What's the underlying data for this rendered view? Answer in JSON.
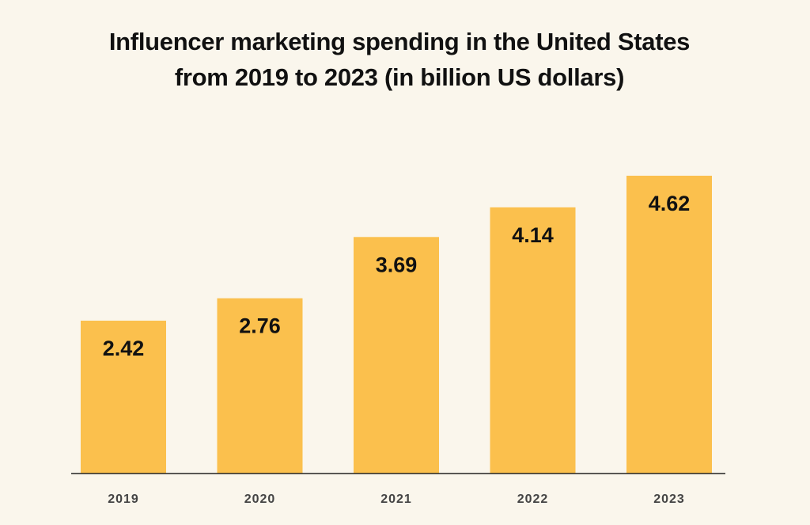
{
  "chart_data": {
    "type": "bar",
    "title_line1": "Influencer marketing spending in the United States",
    "title_line2": "from 2019 to 2023 (in billion US dollars)",
    "categories": [
      "2019",
      "2020",
      "2021",
      "2022",
      "2023"
    ],
    "values": [
      2.42,
      2.76,
      3.69,
      4.14,
      4.62
    ],
    "value_labels": [
      "2.42",
      "2.76",
      "3.69",
      "4.14",
      "4.62"
    ],
    "xlabel": "",
    "ylabel": "",
    "grid": false,
    "legend": "none",
    "colors": {
      "bar": "#fbc04d",
      "background": "#faf6ec",
      "axis": "#222222",
      "label": "#111111",
      "tick": "#444444"
    }
  }
}
